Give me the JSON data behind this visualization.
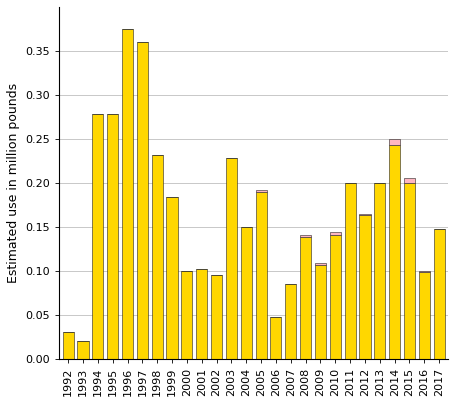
{
  "years": [
    "1992",
    "1993",
    "1994",
    "1995",
    "1996",
    "1997",
    "1998",
    "1999",
    "2000",
    "2001",
    "2002",
    "2003",
    "2004",
    "2005",
    "2006",
    "2007",
    "2008",
    "2009",
    "2010",
    "2011",
    "2012",
    "2013",
    "2014",
    "2015",
    "2016",
    "2017"
  ],
  "yellow_values": [
    0.03,
    0.02,
    0.278,
    0.278,
    0.375,
    0.36,
    0.232,
    0.184,
    0.1,
    0.102,
    0.095,
    0.228,
    0.15,
    0.19,
    0.047,
    0.085,
    0.138,
    0.107,
    0.141,
    0.2,
    0.163,
    0.2,
    0.243,
    0.2,
    0.099,
    0.148
  ],
  "pink_values": [
    0.0,
    0.0,
    0.0,
    0.0,
    0.0,
    0.0,
    0.0,
    0.0,
    0.0,
    0.0,
    0.0,
    0.0,
    0.0,
    0.002,
    0.0,
    0.0,
    0.003,
    0.002,
    0.003,
    0.0,
    0.002,
    0.0,
    0.007,
    0.005,
    0.001,
    0.0
  ],
  "bar_color": "#FFD700",
  "pink_color": "#FFB6C1",
  "edge_color": "#222222",
  "background_color": "#FFFFFF",
  "grid_color": "#C8C8C8",
  "ylabel": "Estimated use in million pounds",
  "ylim": [
    0.0,
    0.4
  ],
  "yticks": [
    0.0,
    0.05,
    0.1,
    0.15,
    0.2,
    0.25,
    0.3,
    0.35
  ],
  "ylabel_fontsize": 9,
  "tick_fontsize": 8,
  "bar_width": 0.75,
  "figsize": [
    4.55,
    4.03
  ],
  "dpi": 100
}
